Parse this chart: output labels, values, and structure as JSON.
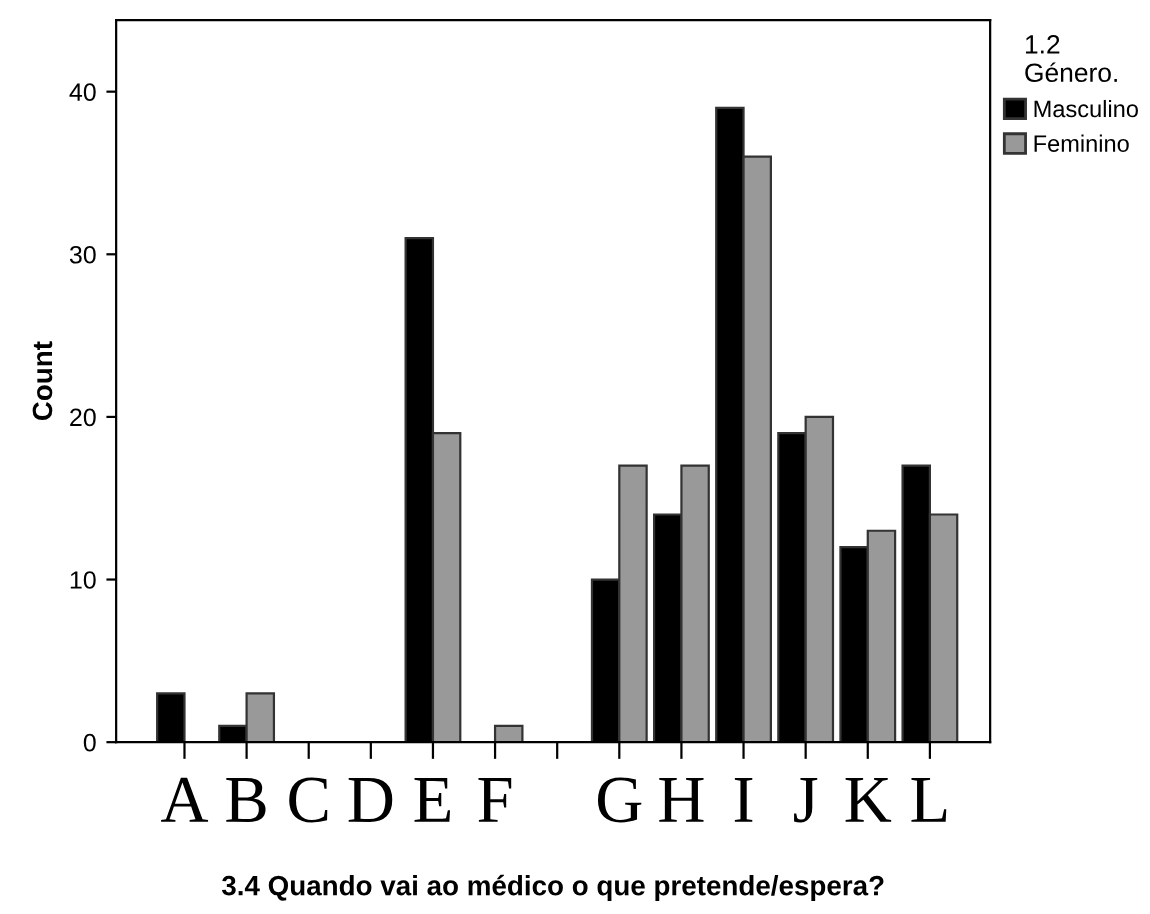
{
  "chart_data": {
    "type": "bar",
    "xlabel": "3.4 Quando vai ao médico o que pretende/espera?",
    "ylabel": "Count",
    "legend_title": "1.2\nGénero.",
    "categories": [
      "A",
      "B",
      "C",
      "D",
      "E",
      "F",
      null,
      "G",
      "H",
      "I",
      "J",
      "K",
      "L"
    ],
    "series": [
      {
        "name": "Masculino",
        "color": "#000000",
        "values": [
          3,
          1,
          0,
          0,
          31,
          0,
          0,
          10,
          14,
          39,
          19,
          12,
          17
        ]
      },
      {
        "name": "Feminino",
        "color": "#999999",
        "values": [
          0,
          3,
          0,
          0,
          19,
          1,
          0,
          17,
          17,
          36,
          20,
          13,
          14
        ]
      }
    ],
    "ylim": [
      0,
      44.4
    ],
    "yticks": [
      0,
      10,
      20,
      30,
      40
    ],
    "grid": false,
    "legend": "top right"
  }
}
